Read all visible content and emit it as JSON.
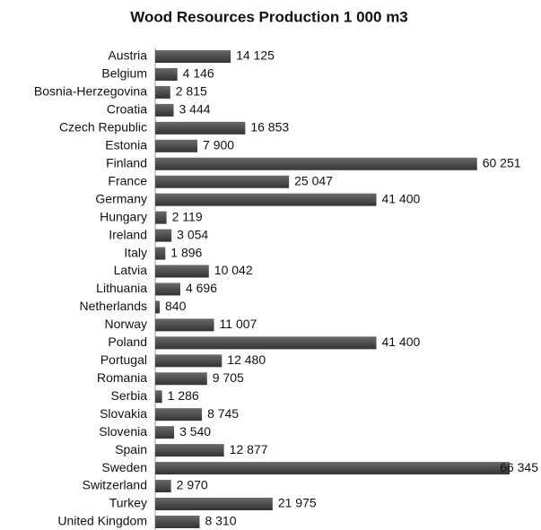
{
  "chart_data": {
    "type": "bar",
    "orientation": "horizontal",
    "title": "Wood Resources Production 1 000 m3",
    "categories": [
      "Austria",
      "Belgium",
      "Bosnia-Herzegovina",
      "Croatia",
      "Czech Republic",
      "Estonia",
      "Finland",
      "France",
      "Germany",
      "Hungary",
      "Ireland",
      "Italy",
      "Latvia",
      "Lithuania",
      "Netherlands",
      "Norway",
      "Poland",
      "Portugal",
      "Romania",
      "Serbia",
      "Slovakia",
      "Slovenia",
      "Spain",
      "Sweden",
      "Switzerland",
      "Turkey",
      "United Kingdom"
    ],
    "values": [
      14125,
      4146,
      2815,
      3444,
      16853,
      7900,
      60251,
      25047,
      41400,
      2119,
      3054,
      1896,
      10042,
      4696,
      840,
      11007,
      41400,
      12480,
      9705,
      1286,
      8745,
      3540,
      12877,
      66345,
      2970,
      21975,
      8310
    ],
    "value_labels": [
      "14 125",
      "4 146",
      "2 815",
      "3 444",
      "16 853",
      "7 900",
      "60 251",
      "25 047",
      "41 400",
      "2 119",
      "3 054",
      "1 896",
      "10 042",
      "4 696",
      "840",
      "11 007",
      "41 400",
      "12 480",
      "9 705",
      "1 286",
      "8 745",
      "3 540",
      "12 877",
      "66 345",
      "2 970",
      "21 975",
      "8 310"
    ],
    "color": "#4a4a4a"
  }
}
